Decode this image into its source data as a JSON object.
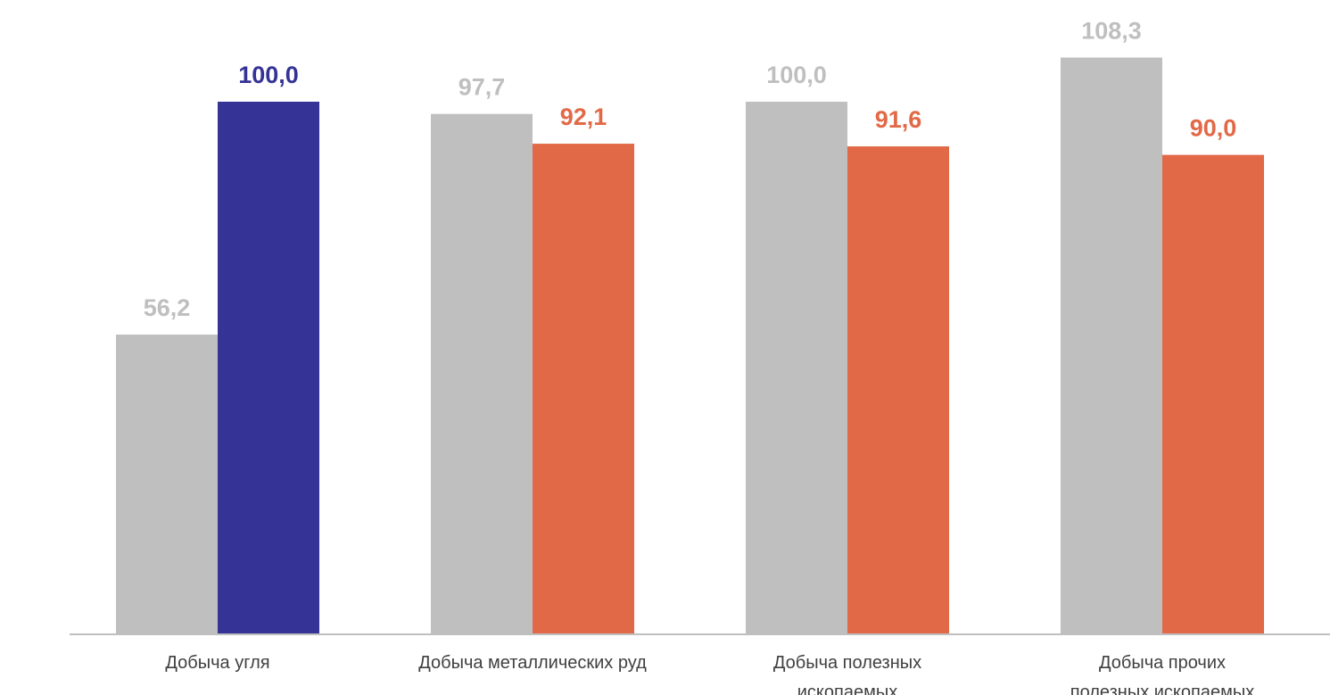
{
  "chart_data": {
    "type": "bar",
    "title": "",
    "xlabel": "",
    "ylabel": "",
    "ylim": [
      0,
      110
    ],
    "grid": false,
    "legend": "none",
    "categories": [
      [
        "Добыча угля"
      ],
      [
        "Добыча металлических руд"
      ],
      [
        "Добыча полезных",
        "ископаемых"
      ],
      [
        "Добыча прочих",
        "полезных ископаемых"
      ]
    ],
    "series": [
      {
        "values": [
          56.2,
          97.7,
          100.0,
          108.3
        ],
        "labels": [
          "56,2",
          "97,7",
          "100,0",
          "108,3"
        ],
        "color": "#bfbfbf",
        "label_color": "#bfbfbf"
      },
      {
        "values": [
          100.0,
          92.1,
          91.6,
          90.0
        ],
        "labels": [
          "100,0",
          "92,1",
          "91,6",
          "90,0"
        ],
        "colors": [
          "#353395",
          "#e26947",
          "#e26947",
          "#e26947"
        ],
        "label_colors": [
          "#353395",
          "#e26947",
          "#e26947",
          "#e26947"
        ]
      }
    ],
    "axis_color": "#bfbfbf"
  }
}
